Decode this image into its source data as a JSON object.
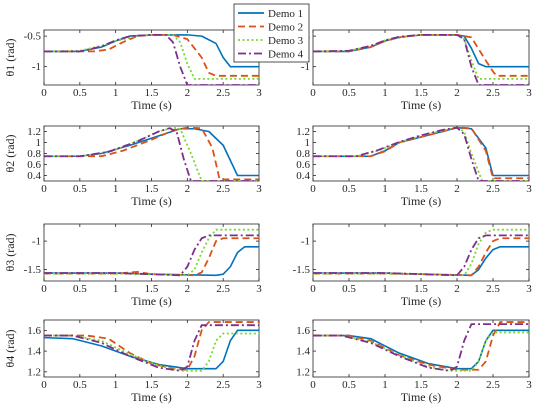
{
  "colors": {
    "demo1": "#0072BD",
    "demo2": "#D95319",
    "demo3": "#7AD630",
    "demo4": "#7E2F8E"
  },
  "legend": {
    "entries": [
      "Demo 1",
      "Demo 2",
      "Demo 3",
      "Demo 4"
    ],
    "placement": "top-center"
  },
  "chart_data": [
    {
      "type": "line",
      "row": 0,
      "col": 0,
      "xlabel": "Time (s)",
      "ylabel": "θ1 (rad)",
      "xlim": [
        0,
        3
      ],
      "ylim": [
        -1.3,
        -0.4
      ],
      "xticks": [
        "0",
        "0.5",
        "1",
        "1.5",
        "2",
        "2.5",
        "3"
      ],
      "yticks": [
        "-0.5",
        "-1"
      ],
      "ytick_values": [
        -0.5,
        -1
      ],
      "series": [
        {
          "name": "Demo 1",
          "x": [
            0,
            0.5,
            0.8,
            1,
            1.2,
            1.5,
            2,
            2.2,
            2.4,
            2.5,
            2.6,
            3
          ],
          "y": [
            -0.75,
            -0.75,
            -0.68,
            -0.58,
            -0.5,
            -0.48,
            -0.48,
            -0.5,
            -0.62,
            -0.85,
            -1.0,
            -1.0
          ]
        },
        {
          "name": "Demo 2",
          "x": [
            0,
            0.7,
            0.9,
            1.1,
            1.3,
            1.5,
            1.8,
            2.0,
            2.2,
            2.3,
            2.4,
            3
          ],
          "y": [
            -0.75,
            -0.75,
            -0.72,
            -0.6,
            -0.5,
            -0.48,
            -0.48,
            -0.55,
            -0.85,
            -1.1,
            -1.15,
            -1.15
          ]
        },
        {
          "name": "Demo 3",
          "x": [
            0,
            0.5,
            0.8,
            1,
            1.3,
            1.5,
            1.8,
            1.9,
            2.0,
            2.1,
            3
          ],
          "y": [
            -0.75,
            -0.74,
            -0.66,
            -0.58,
            -0.5,
            -0.48,
            -0.48,
            -0.6,
            -0.95,
            -1.2,
            -1.2
          ]
        },
        {
          "name": "Demo 4",
          "x": [
            0,
            0.5,
            0.8,
            1,
            1.2,
            1.5,
            1.7,
            1.8,
            1.9,
            2.0,
            3
          ],
          "y": [
            -0.75,
            -0.75,
            -0.67,
            -0.57,
            -0.5,
            -0.48,
            -0.48,
            -0.6,
            -1.0,
            -1.3,
            -1.3
          ]
        }
      ]
    },
    {
      "type": "line",
      "row": 0,
      "col": 1,
      "xlabel": "Time (s)",
      "ylabel": "",
      "xlim": [
        0,
        3
      ],
      "ylim": [
        -1.3,
        -0.4
      ],
      "xticks": [
        "0",
        "0.5",
        "1",
        "1.5",
        "2",
        "2.5",
        "3"
      ],
      "yticks": [
        "-0.5",
        "-1"
      ],
      "ytick_values": [
        -0.5,
        -1
      ],
      "series": [
        {
          "name": "Demo 1",
          "x": [
            0,
            0.5,
            0.8,
            1,
            1.2,
            1.5,
            2,
            2.1,
            2.2,
            2.3,
            2.4,
            3
          ],
          "y": [
            -0.75,
            -0.75,
            -0.68,
            -0.58,
            -0.52,
            -0.48,
            -0.48,
            -0.5,
            -0.7,
            -0.95,
            -1.0,
            -1.0
          ]
        },
        {
          "name": "Demo 2",
          "x": [
            0,
            0.5,
            0.8,
            1,
            1.2,
            1.5,
            2,
            2.2,
            2.4,
            2.5,
            2.55,
            2.6,
            3
          ],
          "y": [
            -0.75,
            -0.75,
            -0.68,
            -0.58,
            -0.52,
            -0.48,
            -0.48,
            -0.52,
            -0.9,
            -1.08,
            -1.15,
            -1.15,
            -1.15
          ]
        },
        {
          "name": "Demo 3",
          "x": [
            0,
            0.5,
            0.8,
            1,
            1.2,
            1.5,
            2,
            2.1,
            2.2,
            2.3,
            3
          ],
          "y": [
            -0.75,
            -0.74,
            -0.66,
            -0.57,
            -0.52,
            -0.48,
            -0.48,
            -0.55,
            -0.9,
            -1.2,
            -1.2
          ]
        },
        {
          "name": "Demo 4",
          "x": [
            0,
            0.5,
            0.8,
            1,
            1.2,
            1.5,
            2,
            2.1,
            2.2,
            2.3,
            3
          ],
          "y": [
            -0.75,
            -0.74,
            -0.66,
            -0.57,
            -0.51,
            -0.48,
            -0.48,
            -0.55,
            -1.0,
            -1.3,
            -1.3
          ]
        }
      ]
    },
    {
      "type": "line",
      "row": 1,
      "col": 0,
      "xlabel": "Time (s)",
      "ylabel": "θ2 (rad)",
      "xlim": [
        0,
        3
      ],
      "ylim": [
        0.3,
        1.3
      ],
      "xticks": [
        "0",
        "0.5",
        "1",
        "1.5",
        "2",
        "2.5",
        "3"
      ],
      "yticks": [
        "1.2",
        "1",
        "0.8",
        "0.6",
        "0.4"
      ],
      "ytick_values": [
        1.2,
        1.0,
        0.8,
        0.6,
        0.4
      ],
      "series": [
        {
          "name": "Demo 1",
          "x": [
            0,
            0.5,
            0.8,
            1.2,
            1.6,
            1.9,
            2.1,
            2.3,
            2.5,
            2.7,
            3
          ],
          "y": [
            0.75,
            0.75,
            0.8,
            0.95,
            1.12,
            1.25,
            1.25,
            1.2,
            0.95,
            0.4,
            0.4
          ]
        },
        {
          "name": "Demo 2",
          "x": [
            0,
            0.8,
            1.1,
            1.5,
            1.8,
            2.0,
            2.2,
            2.35,
            2.45,
            3
          ],
          "y": [
            0.75,
            0.75,
            0.85,
            1.05,
            1.22,
            1.27,
            1.26,
            0.9,
            0.33,
            0.33
          ]
        },
        {
          "name": "Demo 3",
          "x": [
            0,
            0.5,
            0.9,
            1.3,
            1.6,
            1.8,
            1.9,
            2.05,
            2.2,
            3
          ],
          "y": [
            0.75,
            0.75,
            0.82,
            1.02,
            1.2,
            1.27,
            1.25,
            0.8,
            0.3,
            0.3
          ]
        },
        {
          "name": "Demo 4",
          "x": [
            0,
            0.5,
            0.9,
            1.3,
            1.6,
            1.75,
            1.85,
            1.95,
            2.05,
            3
          ],
          "y": [
            0.75,
            0.75,
            0.83,
            1.02,
            1.2,
            1.26,
            1.2,
            0.7,
            0.3,
            0.3
          ]
        }
      ]
    },
    {
      "type": "line",
      "row": 1,
      "col": 1,
      "xlabel": "Time (s)",
      "ylabel": "",
      "xlim": [
        0,
        3
      ],
      "ylim": [
        0.3,
        1.3
      ],
      "xticks": [
        "0",
        "0.5",
        "1",
        "1.5",
        "2",
        "2.5",
        "3"
      ],
      "yticks": [
        "1.2",
        "1",
        "0.8",
        "0.6",
        "0.4"
      ],
      "ytick_values": [
        1.2,
        1.0,
        0.8,
        0.6,
        0.4
      ],
      "series": [
        {
          "name": "Demo 1",
          "x": [
            0,
            0.8,
            1.0,
            1.2,
            1.5,
            1.8,
            2.0,
            2.2,
            2.4,
            2.5,
            3
          ],
          "y": [
            0.75,
            0.75,
            0.85,
            1.0,
            1.1,
            1.2,
            1.27,
            1.25,
            0.9,
            0.4,
            0.4
          ]
        },
        {
          "name": "Demo 2",
          "x": [
            0,
            0.8,
            1.0,
            1.2,
            1.5,
            1.8,
            2.0,
            2.2,
            2.4,
            2.5,
            3
          ],
          "y": [
            0.75,
            0.75,
            0.84,
            1.0,
            1.1,
            1.2,
            1.27,
            1.26,
            0.85,
            0.35,
            0.35
          ]
        },
        {
          "name": "Demo 3",
          "x": [
            0,
            0.6,
            0.9,
            1.2,
            1.5,
            1.8,
            2.0,
            2.1,
            2.2,
            2.35,
            3
          ],
          "y": [
            0.75,
            0.75,
            0.85,
            1.0,
            1.12,
            1.22,
            1.27,
            1.2,
            0.8,
            0.3,
            0.3
          ]
        },
        {
          "name": "Demo 4",
          "x": [
            0,
            0.6,
            0.9,
            1.2,
            1.5,
            1.8,
            2.0,
            2.1,
            2.2,
            2.3,
            3
          ],
          "y": [
            0.75,
            0.75,
            0.86,
            1.01,
            1.13,
            1.23,
            1.27,
            1.15,
            0.7,
            0.3,
            0.3
          ]
        }
      ]
    },
    {
      "type": "line",
      "row": 2,
      "col": 0,
      "xlabel": "Time (s)",
      "ylabel": "θ3 (rad)",
      "xlim": [
        0,
        3
      ],
      "ylim": [
        -1.7,
        -0.7
      ],
      "xticks": [
        "0",
        "0.5",
        "1",
        "1.5",
        "2",
        "2.5",
        "3"
      ],
      "yticks": [
        "-1",
        "-1.5"
      ],
      "ytick_values": [
        -1,
        -1.5
      ],
      "series": [
        {
          "name": "Demo 1",
          "x": [
            0,
            1.0,
            1.5,
            2.4,
            2.5,
            2.6,
            2.7,
            2.8,
            3
          ],
          "y": [
            -1.56,
            -1.56,
            -1.58,
            -1.6,
            -1.58,
            -1.45,
            -1.2,
            -1.1,
            -1.1
          ]
        },
        {
          "name": "Demo 2",
          "x": [
            0,
            1.0,
            1.3,
            1.5,
            2.1,
            2.2,
            2.3,
            2.4,
            2.5,
            3
          ],
          "y": [
            -1.57,
            -1.57,
            -1.54,
            -1.58,
            -1.6,
            -1.55,
            -1.3,
            -1.0,
            -0.95,
            -0.95
          ]
        },
        {
          "name": "Demo 3",
          "x": [
            0,
            1.0,
            1.5,
            2.0,
            2.1,
            2.2,
            2.3,
            2.4,
            3
          ],
          "y": [
            -1.57,
            -1.57,
            -1.58,
            -1.6,
            -1.5,
            -1.2,
            -0.95,
            -0.8,
            -0.8
          ]
        },
        {
          "name": "Demo 4",
          "x": [
            0,
            1.0,
            1.5,
            1.9,
            2.0,
            2.1,
            2.2,
            2.3,
            3
          ],
          "y": [
            -1.56,
            -1.56,
            -1.58,
            -1.6,
            -1.45,
            -1.15,
            -0.95,
            -0.9,
            -0.9
          ]
        }
      ]
    },
    {
      "type": "line",
      "row": 2,
      "col": 1,
      "xlabel": "Time (s)",
      "ylabel": "",
      "xlim": [
        0,
        3
      ],
      "ylim": [
        -1.7,
        -0.7
      ],
      "xticks": [
        "0",
        "0.5",
        "1",
        "1.5",
        "2",
        "2.5",
        "3"
      ],
      "yticks": [
        "-1",
        "-1.5"
      ],
      "ytick_values": [
        -1,
        -1.5
      ],
      "series": [
        {
          "name": "Demo 1",
          "x": [
            0,
            1.0,
            1.5,
            2.2,
            2.3,
            2.4,
            2.5,
            2.6,
            3
          ],
          "y": [
            -1.56,
            -1.56,
            -1.58,
            -1.6,
            -1.5,
            -1.3,
            -1.15,
            -1.1,
            -1.1
          ]
        },
        {
          "name": "Demo 2",
          "x": [
            0,
            1.0,
            1.5,
            2.2,
            2.3,
            2.4,
            2.5,
            2.6,
            3
          ],
          "y": [
            -1.57,
            -1.57,
            -1.58,
            -1.6,
            -1.45,
            -1.2,
            -1.0,
            -0.95,
            -0.95
          ]
        },
        {
          "name": "Demo 3",
          "x": [
            0,
            1.0,
            1.5,
            2.1,
            2.2,
            2.3,
            2.4,
            2.5,
            3
          ],
          "y": [
            -1.57,
            -1.57,
            -1.58,
            -1.6,
            -1.4,
            -1.05,
            -0.85,
            -0.8,
            -0.8
          ]
        },
        {
          "name": "Demo 4",
          "x": [
            0,
            1.0,
            1.5,
            2.0,
            2.1,
            2.2,
            2.3,
            2.4,
            3
          ],
          "y": [
            -1.56,
            -1.56,
            -1.58,
            -1.6,
            -1.45,
            -1.15,
            -0.95,
            -0.9,
            -0.9
          ]
        }
      ]
    },
    {
      "type": "line",
      "row": 3,
      "col": 0,
      "xlabel": "Time (s)",
      "ylabel": "θ4 (rad)",
      "xlim": [
        0,
        3
      ],
      "ylim": [
        1.15,
        1.7
      ],
      "xticks": [
        "0",
        "0.5",
        "1",
        "1.5",
        "2",
        "2.5",
        "3"
      ],
      "yticks": [
        "1.6",
        "1.4",
        "1.2"
      ],
      "ytick_values": [
        1.6,
        1.4,
        1.2
      ],
      "series": [
        {
          "name": "Demo 1",
          "x": [
            0,
            0.4,
            0.8,
            1.2,
            1.6,
            2.0,
            2.4,
            2.5,
            2.6,
            2.7,
            3
          ],
          "y": [
            1.53,
            1.52,
            1.45,
            1.35,
            1.27,
            1.23,
            1.23,
            1.3,
            1.5,
            1.6,
            1.6
          ]
        },
        {
          "name": "Demo 2",
          "x": [
            0,
            0.6,
            0.9,
            1.2,
            1.5,
            1.8,
            2.0,
            2.1,
            2.2,
            2.3,
            3
          ],
          "y": [
            1.55,
            1.55,
            1.52,
            1.38,
            1.28,
            1.23,
            1.22,
            1.35,
            1.6,
            1.68,
            1.68
          ]
        },
        {
          "name": "Demo 3",
          "x": [
            0,
            0.4,
            0.8,
            1.2,
            1.6,
            1.9,
            2.2,
            2.3,
            2.4,
            2.5,
            3
          ],
          "y": [
            1.55,
            1.55,
            1.5,
            1.37,
            1.26,
            1.21,
            1.21,
            1.3,
            1.5,
            1.57,
            1.57
          ]
        },
        {
          "name": "Demo 4",
          "x": [
            0,
            0.4,
            0.8,
            1.2,
            1.6,
            1.9,
            2.0,
            2.1,
            2.2,
            3
          ],
          "y": [
            1.55,
            1.55,
            1.48,
            1.35,
            1.24,
            1.21,
            1.25,
            1.5,
            1.65,
            1.65
          ]
        }
      ]
    },
    {
      "type": "line",
      "row": 3,
      "col": 1,
      "xlabel": "Time (s)",
      "ylabel": "",
      "xlim": [
        0,
        3
      ],
      "ylim": [
        1.15,
        1.7
      ],
      "xticks": [
        "0",
        "0.5",
        "1",
        "1.5",
        "2",
        "2.5",
        "3"
      ],
      "yticks": [
        "1.6",
        "1.4",
        "1.2"
      ],
      "ytick_values": [
        1.6,
        1.4,
        1.2
      ],
      "series": [
        {
          "name": "Demo 1",
          "x": [
            0,
            0.5,
            0.8,
            1.2,
            1.6,
            2.0,
            2.2,
            2.3,
            2.4,
            2.5,
            3
          ],
          "y": [
            1.55,
            1.55,
            1.52,
            1.38,
            1.28,
            1.23,
            1.23,
            1.3,
            1.5,
            1.6,
            1.6
          ]
        },
        {
          "name": "Demo 2",
          "x": [
            0,
            0.5,
            0.8,
            1.2,
            1.6,
            2.0,
            2.3,
            2.4,
            2.5,
            2.6,
            3
          ],
          "y": [
            1.55,
            1.55,
            1.5,
            1.36,
            1.27,
            1.22,
            1.22,
            1.3,
            1.55,
            1.68,
            1.68
          ]
        },
        {
          "name": "Demo 3",
          "x": [
            0,
            0.4,
            0.8,
            1.2,
            1.6,
            1.9,
            2.2,
            2.3,
            2.4,
            2.5,
            3
          ],
          "y": [
            1.55,
            1.55,
            1.49,
            1.36,
            1.25,
            1.21,
            1.21,
            1.3,
            1.5,
            1.58,
            1.58
          ]
        },
        {
          "name": "Demo 4",
          "x": [
            0,
            0.4,
            0.8,
            1.2,
            1.6,
            1.9,
            2.0,
            2.1,
            2.2,
            3
          ],
          "y": [
            1.55,
            1.55,
            1.48,
            1.35,
            1.24,
            1.21,
            1.25,
            1.5,
            1.66,
            1.66
          ]
        }
      ]
    }
  ]
}
